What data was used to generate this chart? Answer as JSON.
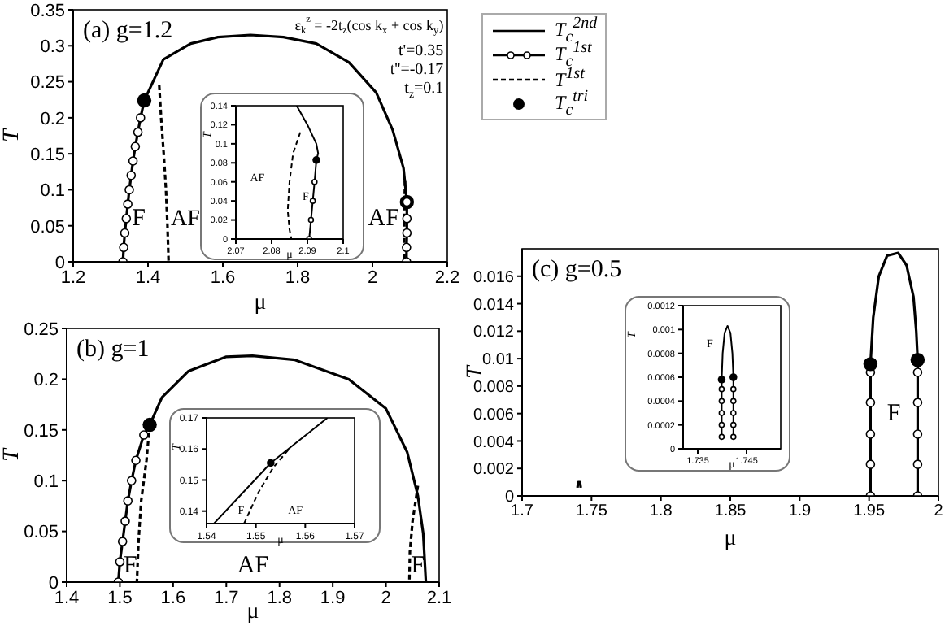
{
  "chart_data": [
    {
      "type": "line",
      "title": "(a) g=1.2",
      "xlabel": "μ",
      "ylabel": "T",
      "xlim": [
        1.2,
        2.2
      ],
      "xticks": [
        1.2,
        1.4,
        1.6,
        1.8,
        2,
        2.2
      ],
      "ylim": [
        0,
        0.35
      ],
      "yticks": [
        0,
        0.05,
        0.1,
        0.15,
        0.2,
        0.25,
        0.3,
        0.35
      ],
      "legend": "right",
      "series": [
        {
          "name": "T$_{c}$$^{2nd}$",
          "color": "#000000",
          "marker": "none",
          "line_style": "solid",
          "x": [
            1.39,
            1.441,
            1.514,
            1.587,
            1.674,
            1.762,
            1.85,
            1.937,
            2.01,
            2.054,
            2.083,
            2.092
          ],
          "values": [
            0.224,
            0.281,
            0.303,
            0.312,
            0.315,
            0.312,
            0.303,
            0.277,
            0.235,
            0.183,
            0.13,
            0.083
          ]
        },
        {
          "name": "T$_{c}$$^{1st}$",
          "color": "#000000",
          "marker": "circle",
          "line_style": "solid",
          "x": [
            1.333,
            1.335,
            1.338,
            1.342,
            1.346,
            1.35,
            1.355,
            1.36,
            1.366,
            1.373,
            1.38,
            1.39
          ],
          "values": [
            0,
            0.02,
            0.04,
            0.06,
            0.08,
            0.1,
            0.12,
            0.14,
            0.16,
            0.18,
            0.2,
            0.224
          ]
        },
        {
          "name": "T$^{1st}$",
          "color": "#000000",
          "marker": "none",
          "line_style": "dashed",
          "x": [
            1.43,
            1.435,
            1.442,
            1.448,
            1.452,
            1.455
          ],
          "values": [
            0.245,
            0.2,
            0.15,
            0.1,
            0.05,
            0
          ]
        },
        {
          "name": "T$_{c}$$^{tri}$",
          "type": "scatter",
          "color": "#000000",
          "marker": "circle",
          "x": [
            1.39,
            2.092
          ],
          "values": [
            0.224,
            0.083
          ]
        },
        {
          "color": "#000000",
          "marker": "circle",
          "line_style": "solid",
          "x": [
            2.092,
            2.092,
            2.092,
            2.091,
            2.091
          ],
          "values": [
            0.083,
            0.06,
            0.04,
            0.02,
            0
          ]
        },
        {
          "color": "#000000",
          "marker": "none",
          "line_style": "dashed",
          "x": [
            2.087,
            2.0855,
            2.085,
            2.0855
          ],
          "values": [
            0.112,
            0.07,
            0.03,
            0
          ]
        }
      ],
      "annotations": [
        "ε$_{k}$$^{z}$ = -2t$_{z}$(cos k$_{x}$ + cos k$_{y}$)",
        "t'=0.35",
        "t''=-0.17",
        "t$_{z}$=0.1",
        "F",
        "AF",
        "AF"
      ]
    },
    {
      "type": "line",
      "xlabel": "μ",
      "ylabel": "T",
      "xlim": [
        2.07,
        2.1
      ],
      "xticks": [
        2.07,
        2.08,
        2.09,
        2.1
      ],
      "ylim": [
        0,
        0.14
      ],
      "yticks": [
        0,
        0.02,
        0.04,
        0.06,
        0.08,
        0.1,
        0.12,
        0.14
      ],
      "series": [
        {
          "color": "#000000",
          "marker": "none",
          "line_style": "solid",
          "x": [
            2.087,
            2.09,
            2.0925,
            2.093,
            2.0925
          ],
          "values": [
            0.14,
            0.12,
            0.1,
            0.09,
            0.083
          ]
        },
        {
          "color": "#000000",
          "marker": "circle",
          "line_style": "solid",
          "x": [
            2.0925,
            2.092,
            2.0915,
            2.091,
            2.0905
          ],
          "values": [
            0.083,
            0.06,
            0.04,
            0.02,
            0
          ]
        },
        {
          "color": "#000000",
          "marker": "none",
          "line_style": "dashed",
          "x": [
            2.088,
            2.086,
            2.085,
            2.0845,
            2.085,
            2.0855
          ],
          "values": [
            0.112,
            0.09,
            0.06,
            0.03,
            0.01,
            0
          ]
        },
        {
          "type": "scatter",
          "color": "#000000",
          "marker": "circle",
          "x": [
            2.0925
          ],
          "values": [
            0.083
          ]
        }
      ],
      "annotations": [
        "AF",
        "F"
      ]
    },
    {
      "type": "line",
      "title": "(b) g=1",
      "xlabel": "μ",
      "ylabel": "T",
      "xlim": [
        1.4,
        2.1
      ],
      "xticks": [
        1.4,
        1.5,
        1.6,
        1.7,
        1.8,
        1.9,
        2,
        2.1
      ],
      "ylim": [
        0,
        0.25
      ],
      "yticks": [
        0,
        0.05,
        0.1,
        0.15,
        0.2,
        0.25
      ],
      "series": [
        {
          "color": "#000000",
          "marker": "none",
          "line_style": "solid",
          "x": [
            1.556,
            1.579,
            1.629,
            1.699,
            1.749,
            1.829,
            1.93,
            2.0,
            2.04,
            2.06,
            2.07,
            2.075
          ],
          "values": [
            0.155,
            0.182,
            0.208,
            0.222,
            0.223,
            0.219,
            0.2,
            0.171,
            0.128,
            0.085,
            0.048,
            0
          ]
        },
        {
          "color": "#000000",
          "marker": "circle",
          "line_style": "solid",
          "x": [
            1.497,
            1.5,
            1.505,
            1.51,
            1.515,
            1.522,
            1.53,
            1.545,
            1.556
          ],
          "values": [
            0,
            0.02,
            0.04,
            0.06,
            0.08,
            0.1,
            0.12,
            0.145,
            0.155
          ]
        },
        {
          "color": "#000000",
          "marker": "none",
          "line_style": "dashed",
          "x": [
            1.556,
            1.55,
            1.54,
            1.535,
            1.532
          ],
          "values": [
            0.155,
            0.12,
            0.08,
            0.04,
            0
          ]
        },
        {
          "color": "#000000",
          "marker": "none",
          "line_style": "dashed",
          "x": [
            2.06,
            2.05,
            2.045,
            2.044
          ],
          "values": [
            0.095,
            0.06,
            0.03,
            0
          ]
        },
        {
          "type": "scatter",
          "color": "#000000",
          "marker": "circle",
          "x": [
            1.556
          ],
          "values": [
            0.155
          ]
        }
      ],
      "annotations": [
        "F",
        "AF",
        "F"
      ]
    },
    {
      "type": "line",
      "xlabel": "μ",
      "ylabel": "T",
      "xlim": [
        1.54,
        1.57
      ],
      "xticks": [
        1.54,
        1.55,
        1.56,
        1.57
      ],
      "ylim": [
        0.136,
        0.17
      ],
      "yticks": [
        0.14,
        0.15,
        0.16,
        0.17
      ],
      "series": [
        {
          "color": "#000000",
          "marker": "none",
          "line_style": "solid",
          "x": [
            1.5415,
            1.553,
            1.5645
          ],
          "values": [
            0.136,
            0.1555,
            0.17
          ]
        },
        {
          "color": "#000000",
          "marker": "none",
          "line_style": "dashed",
          "x": [
            1.5476,
            1.5505,
            1.5535,
            1.557
          ],
          "values": [
            0.136,
            0.146,
            0.154,
            0.1605
          ]
        },
        {
          "type": "scatter",
          "color": "#000000",
          "marker": "circle",
          "x": [
            1.553
          ],
          "values": [
            0.1555
          ]
        }
      ],
      "annotations": [
        "F",
        "AF"
      ]
    },
    {
      "type": "line",
      "title": "(c) g=0.5",
      "xlabel": "μ",
      "ylabel": "T",
      "xlim": [
        1.7,
        2.0
      ],
      "xticks": [
        1.7,
        1.75,
        1.8,
        1.85,
        1.9,
        1.95,
        2
      ],
      "ylim": [
        0,
        0.018
      ],
      "yticks": [
        0,
        0.002,
        0.004,
        0.006,
        0.008,
        0.01,
        0.012,
        0.014,
        0.016
      ],
      "series": [
        {
          "color": "#000000",
          "marker": "none",
          "line_style": "solid",
          "x": [
            1.951,
            1.953,
            1.957,
            1.963,
            1.971,
            1.977,
            1.982,
            1.984,
            1.985
          ],
          "values": [
            0.0096,
            0.013,
            0.016,
            0.0175,
            0.0177,
            0.0168,
            0.0145,
            0.012,
            0.0099
          ]
        },
        {
          "color": "#000000",
          "marker": "circle",
          "line_style": "solid",
          "x": [
            1.951,
            1.951,
            1.951,
            1.951,
            1.951,
            1.951
          ],
          "values": [
            0.0096,
            0.009,
            0.0068,
            0.0045,
            0.0023,
            0
          ]
        },
        {
          "color": "#000000",
          "marker": "circle",
          "line_style": "solid",
          "x": [
            1.985,
            1.985,
            1.985,
            1.985,
            1.985,
            1.985
          ],
          "values": [
            0.0099,
            0.009,
            0.0068,
            0.0045,
            0.0023,
            0
          ]
        },
        {
          "type": "scatter",
          "color": "#000000",
          "marker": "circle",
          "x": [
            1.951,
            1.985
          ],
          "values": [
            0.0096,
            0.0099
          ]
        },
        {
          "color": "#000000",
          "marker": "none",
          "line_style": "solid",
          "x": [
            1.7399,
            1.7405,
            1.7411,
            1.7417,
            1.7423
          ],
          "values": [
            0.0006,
            0.001,
            0.001,
            0.001,
            0.0006
          ]
        }
      ],
      "annotations": [
        "F"
      ]
    },
    {
      "type": "line",
      "xlabel": "μ",
      "ylabel": "T",
      "xlim": [
        1.732,
        1.752
      ],
      "xticks": [
        1.735,
        1.745
      ],
      "ylim": [
        0,
        0.0012
      ],
      "yticks": [
        0,
        0.0002,
        0.0004,
        0.0006,
        0.0008,
        0.001,
        0.0012
      ],
      "series": [
        {
          "color": "#000000",
          "marker": "none",
          "line_style": "solid",
          "x": [
            1.7399,
            1.7401,
            1.7405,
            1.7411,
            1.7417,
            1.7421,
            1.7423
          ],
          "values": [
            0.00058,
            0.0008,
            0.00097,
            0.00103,
            0.00097,
            0.0008,
            0.0006
          ]
        },
        {
          "color": "#000000",
          "marker": "circle",
          "line_style": "solid",
          "x": [
            1.7399,
            1.7399,
            1.7399,
            1.7399,
            1.7399,
            1.7399
          ],
          "values": [
            0.00058,
            0.0005,
            0.0004,
            0.0003,
            0.0002,
            0.0001
          ]
        },
        {
          "color": "#000000",
          "marker": "circle",
          "line_style": "solid",
          "x": [
            1.7423,
            1.7423,
            1.7423,
            1.7423,
            1.7423,
            1.7423
          ],
          "values": [
            0.0006,
            0.0005,
            0.0004,
            0.0003,
            0.0002,
            0.0001
          ]
        },
        {
          "type": "scatter",
          "color": "#000000",
          "marker": "circle",
          "x": [
            1.7399,
            1.7423
          ],
          "values": [
            0.00058,
            0.0006
          ]
        }
      ],
      "annotations": [
        "F"
      ]
    }
  ]
}
